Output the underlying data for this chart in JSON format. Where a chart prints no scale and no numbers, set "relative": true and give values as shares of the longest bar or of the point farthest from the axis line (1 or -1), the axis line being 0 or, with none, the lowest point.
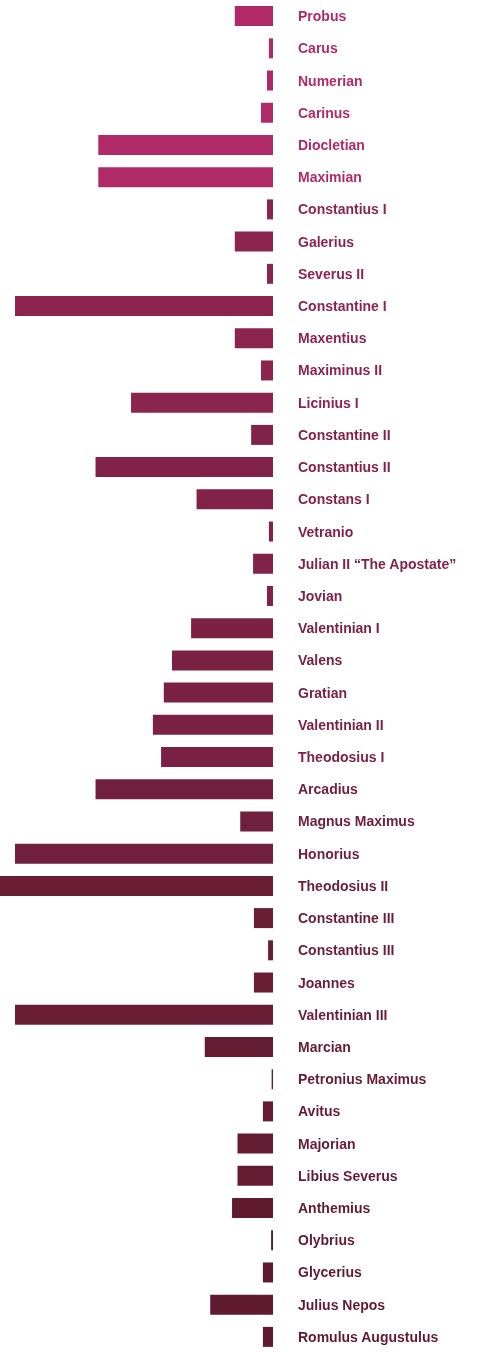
{
  "chart_data": {
    "type": "bar",
    "orientation": "horizontal",
    "relative": true,
    "categories": [
      "Probus",
      "Carus",
      "Numerian",
      "Carinus",
      "Diocletian",
      "Maximian",
      "Constantius I",
      "Galerius",
      "Severus II",
      "Constantine I",
      "Maxentius",
      "Maximinus II",
      "Licinius I",
      "Constantine II",
      "Constantius II",
      "Constans I",
      "Vetranio",
      "Julian II “The Apostate”",
      "Jovian",
      "Valentinian I",
      "Valens",
      "Gratian",
      "Valentinian II",
      "Theodosius I",
      "Arcadius",
      "Magnus Maximus",
      "Honorius",
      "Theodosius II",
      "Constantine III",
      "Constantius III",
      "Joannes",
      "Valentinian III",
      "Marcian",
      "Petronius Maximus",
      "Avitus",
      "Majorian",
      "Libius Severus",
      "Anthemius",
      "Olybrius",
      "Glycerius",
      "Julius Nepos",
      "Romulus Augustulus"
    ],
    "values": [
      -0.14,
      -0.015,
      -0.022,
      -0.044,
      -0.64,
      -0.64,
      -0.022,
      -0.14,
      -0.022,
      -0.945,
      -0.14,
      -0.044,
      -0.52,
      -0.08,
      -0.65,
      -0.28,
      -0.015,
      -0.073,
      -0.022,
      -0.3,
      -0.37,
      -0.4,
      -0.44,
      -0.41,
      -0.65,
      -0.12,
      -0.945,
      -1,
      -0.07,
      -0.018,
      -0.07,
      -0.945,
      -0.25,
      -0.005,
      -0.037,
      -0.13,
      -0.13,
      -0.15,
      -0.007,
      -0.037,
      -0.23,
      -0.037
    ],
    "colors": [
      "#b02a68",
      "#b02a68",
      "#b02a68",
      "#b02a68",
      "#b02a68",
      "#b02a68",
      "#8c2450",
      "#8c2450",
      "#8c2450",
      "#8c2450",
      "#8c2450",
      "#8c2450",
      "#8c2450",
      "#822248",
      "#822248",
      "#822248",
      "#822248",
      "#822248",
      "#822248",
      "#7a2144",
      "#7a2144",
      "#7a2144",
      "#7a2144",
      "#7a2144",
      "#70203c",
      "#70203c",
      "#70203c",
      "#6a1e36",
      "#6a1e36",
      "#6a1e36",
      "#6a1e36",
      "#6a1e36",
      "#641c32",
      "#641c32",
      "#641c32",
      "#641c32",
      "#641c32",
      "#601b2f",
      "#601b2f",
      "#601b2f",
      "#601b2f",
      "#601b2f"
    ]
  }
}
